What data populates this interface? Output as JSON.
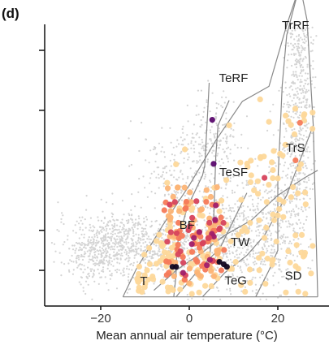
{
  "panel_label": "(d)",
  "chart_data": {
    "type": "scatter",
    "title": "",
    "xlabel": "Mean annual air temperature (°C)",
    "ylabel": "",
    "xlim": [
      -32,
      32
    ],
    "ylim": [
      0,
      7
    ],
    "x_ticks": [
      -20,
      0,
      20
    ],
    "x_tick_labels": [
      "−20",
      "0",
      "20"
    ],
    "y_ticks": [
      0.6,
      1.4,
      2.6,
      3.8,
      5.0,
      6.1,
      7.0
    ],
    "y_tick_labels": [],
    "grid": false,
    "legend": "none",
    "background_color": "#d4d4d4",
    "boundary_color": "#888888",
    "biome_labels": [
      {
        "name": "TrRF",
        "x": 24.0,
        "y": 5.42
      },
      {
        "name": "TeRF",
        "x": 10.0,
        "y": 4.37
      },
      {
        "name": "TeSF",
        "x": 10.0,
        "y": 2.48
      },
      {
        "name": "TrS",
        "x": 24.0,
        "y": 2.97
      },
      {
        "name": "BF",
        "x": -0.5,
        "y": 1.43
      },
      {
        "name": "TW",
        "x": 11.5,
        "y": 1.09
      },
      {
        "name": "T",
        "x": -10.3,
        "y": 0.31
      },
      {
        "name": "TeG",
        "x": 10.5,
        "y": 0.32
      },
      {
        "name": "SD",
        "x": 23.5,
        "y": 0.41
      }
    ],
    "point_colors": [
      "#fdd89a",
      "#fcb476",
      "#f67a5a",
      "#d7435c",
      "#a01e6b",
      "#5b0a6e",
      "#10061f"
    ]
  }
}
